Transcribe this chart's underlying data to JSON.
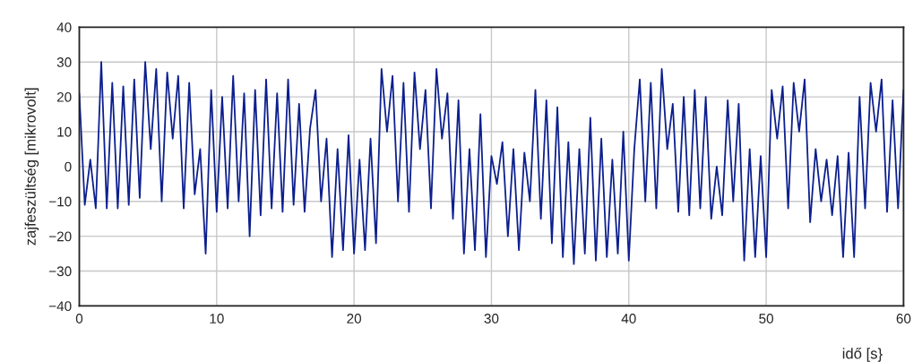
{
  "chart_data": {
    "type": "line",
    "xlabel": "idő [s}",
    "ylabel": "zajfeszültség [mikrovolt]",
    "xlim": [
      0,
      60
    ],
    "xticks": [
      0,
      10,
      20,
      30,
      40,
      50,
      60
    ],
    "ylim": [
      -40,
      40
    ],
    "yticks": [
      {
        "value": -40,
        "label": "−40"
      },
      {
        "value": -30,
        "label": "−30"
      },
      {
        "value": -20,
        "label": "−20"
      },
      {
        "value": -10,
        "label": "−10"
      },
      0,
      10,
      20,
      30,
      40
    ],
    "grid": true,
    "series": [
      {
        "color": "#0c1f8e",
        "x": [
          0,
          0.4,
          0.8,
          1.2,
          1.6,
          2.0,
          2.4,
          2.8,
          3.2,
          3.6,
          4.0,
          4.4,
          4.8,
          5.2,
          5.6,
          6.0,
          6.4,
          6.8,
          7.2,
          7.6,
          8.0,
          8.4,
          8.8,
          9.2,
          9.6,
          10.0,
          10.4,
          10.8,
          11.2,
          11.6,
          12.0,
          12.4,
          12.8,
          13.2,
          13.6,
          14.0,
          14.4,
          14.8,
          15.2,
          15.6,
          16.0,
          16.4,
          16.8,
          17.2,
          17.6,
          18.0,
          18.4,
          18.8,
          19.2,
          19.6,
          20.0,
          20.4,
          20.8,
          21.2,
          21.6,
          22.0,
          22.4,
          22.8,
          23.2,
          23.6,
          24.0,
          24.4,
          24.8,
          25.2,
          25.6,
          26.0,
          26.4,
          26.8,
          27.2,
          27.6,
          28.0,
          28.4,
          28.8,
          29.2,
          29.6,
          30.0,
          30.4,
          30.8,
          31.2,
          31.6,
          32.0,
          32.4,
          32.8,
          33.2,
          33.6,
          34.0,
          34.4,
          34.8,
          35.2,
          35.6,
          36.0,
          36.4,
          36.8,
          37.2,
          37.6,
          38.0,
          38.4,
          38.8,
          39.2,
          39.6,
          40.0,
          40.4,
          40.8,
          41.2,
          41.6,
          42.0,
          42.4,
          42.8,
          43.2,
          43.6,
          44.0,
          44.4,
          44.8,
          45.2,
          45.6,
          46.0,
          46.4,
          46.8,
          47.2,
          47.6,
          48.0,
          48.4,
          48.8,
          49.2,
          49.6,
          50.0,
          50.4,
          50.8,
          51.2,
          51.6,
          52.0,
          52.4,
          52.8,
          53.2,
          53.6,
          54.0,
          54.4,
          54.8,
          55.2,
          55.6,
          56.0,
          56.4,
          56.8,
          57.2,
          57.6,
          58.0,
          58.4,
          58.8,
          59.2,
          59.6,
          60.0
        ],
        "values": [
          21,
          -11,
          2,
          -12,
          30,
          -12,
          24,
          -12,
          23,
          -11,
          25,
          -9,
          30,
          5,
          28,
          -10,
          27,
          8,
          26,
          -12,
          24,
          -8,
          5,
          -25,
          22,
          -13,
          20,
          -12,
          26,
          -10,
          21,
          -20,
          22,
          -14,
          25,
          -12,
          21,
          -13,
          25,
          -11,
          18,
          -13,
          11,
          22,
          -10,
          8,
          -26,
          5,
          -24,
          9,
          -25,
          2,
          -24,
          8,
          -22,
          28,
          10,
          26,
          -10,
          24,
          -13,
          27,
          5,
          22,
          -12,
          28,
          8,
          21,
          -15,
          19,
          -25,
          5,
          -24,
          15,
          -26,
          3,
          -5,
          7,
          -20,
          5,
          -24,
          4,
          -10,
          22,
          -15,
          19,
          -22,
          17,
          -26,
          7,
          -28,
          5,
          -25,
          14,
          -27,
          8,
          -26,
          2,
          -25,
          10,
          -27,
          5,
          25,
          -10,
          24,
          -12,
          28,
          5,
          18,
          -13,
          20,
          -14,
          22,
          -12,
          20,
          -15,
          0,
          -14,
          19,
          -10,
          18,
          -27,
          5,
          -26,
          3,
          -26,
          22,
          8,
          23,
          -12,
          24,
          10,
          25,
          -16,
          5,
          -10,
          2,
          -14,
          3,
          -26,
          4,
          -26,
          20,
          -12,
          24,
          10,
          25,
          -13,
          19,
          -12,
          22
        ]
      }
    ]
  }
}
